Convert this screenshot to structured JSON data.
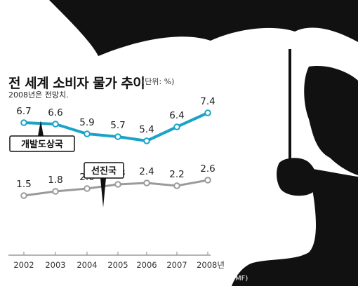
{
  "title": "전 세계 소비자 물가 추이",
  "unit_note": "(단위: %)",
  "forecast_note": "2008년은 전망치.",
  "source": "자료: 국제통화기금(IMF)",
  "colors": {
    "developing": "#1aa3c6",
    "advanced": "#9a9a9a",
    "axis": "#888888",
    "photo": "#111111"
  },
  "chart_data": {
    "type": "line",
    "x": [
      "2002",
      "2003",
      "2004",
      "2005",
      "2006",
      "2007",
      "2008년"
    ],
    "series": [
      {
        "name": "개발도상국",
        "values": [
          6.7,
          6.6,
          5.9,
          5.7,
          5.4,
          6.4,
          7.4
        ],
        "labels": [
          "6.7",
          "6.6",
          "5.9",
          "5.7",
          "5.4",
          "6.4",
          "7.4"
        ]
      },
      {
        "name": "선진국",
        "values": [
          1.5,
          1.8,
          2.0,
          2.3,
          2.4,
          2.2,
          2.6
        ],
        "labels": [
          "1.5",
          "1.8",
          "2.0",
          "2.3",
          "2.4",
          "2.2",
          "2.6"
        ]
      }
    ]
  }
}
